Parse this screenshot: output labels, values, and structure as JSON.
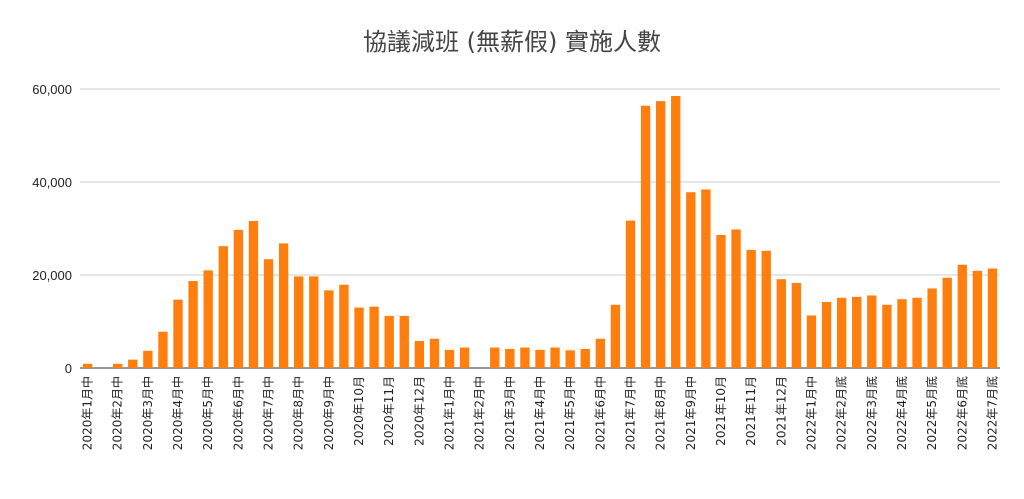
{
  "chart_data": {
    "type": "bar",
    "title": "協議減班 (無薪假) 實施人數",
    "xlabel": "",
    "ylabel": "",
    "ylim": [
      0,
      60000
    ],
    "y_ticks": [
      0,
      20000,
      40000,
      60000
    ],
    "y_tick_labels": [
      "0",
      "20,000",
      "40,000",
      "60,000"
    ],
    "grid": true,
    "bar_color": "#ff7f0e",
    "categories": [
      "2020年1月中",
      "",
      "2020年2月中",
      "",
      "2020年3月中",
      "",
      "2020年4月中",
      "",
      "2020年5月中",
      "",
      "2020年6月中",
      "",
      "2020年7月中",
      "",
      "2020年8月中",
      "",
      "2020年9月中",
      "",
      "2020年10月",
      "",
      "2020年11月",
      "",
      "2020年12月",
      "",
      "2021年1月中",
      "",
      "2021年2月中",
      "",
      "2021年3月中",
      "",
      "2021年4月中",
      "",
      "2021年5月中",
      "",
      "2021年6月中",
      "",
      "2021年7月中",
      "",
      "2021年8月中",
      "",
      "2021年9月中",
      "",
      "2021年10月",
      "",
      "2021年11月",
      "",
      "2021年12月",
      "",
      "2022年1月中",
      "",
      "2022年2月底",
      "",
      "2022年3月底",
      "",
      "2022年4月底",
      "",
      "2022年5月底",
      "",
      "2022年6月底",
      "",
      "2022年7月底"
    ],
    "values": [
      900,
      0,
      900,
      1800,
      3700,
      7800,
      14700,
      18700,
      21000,
      26200,
      29700,
      31600,
      23400,
      26800,
      19700,
      19700,
      16700,
      17900,
      13000,
      13200,
      11200,
      11200,
      5800,
      6300,
      3900,
      4400,
      0,
      4400,
      4100,
      4400,
      3900,
      4400,
      3800,
      4100,
      6300,
      13600,
      31700,
      56400,
      57400,
      58500,
      37800,
      38400,
      28600,
      29800,
      25400,
      25200,
      19100,
      18300,
      11300,
      14200,
      15100,
      15300,
      15600,
      13600,
      14800,
      15100,
      17100,
      19400,
      22200,
      20900,
      21400
    ]
  }
}
